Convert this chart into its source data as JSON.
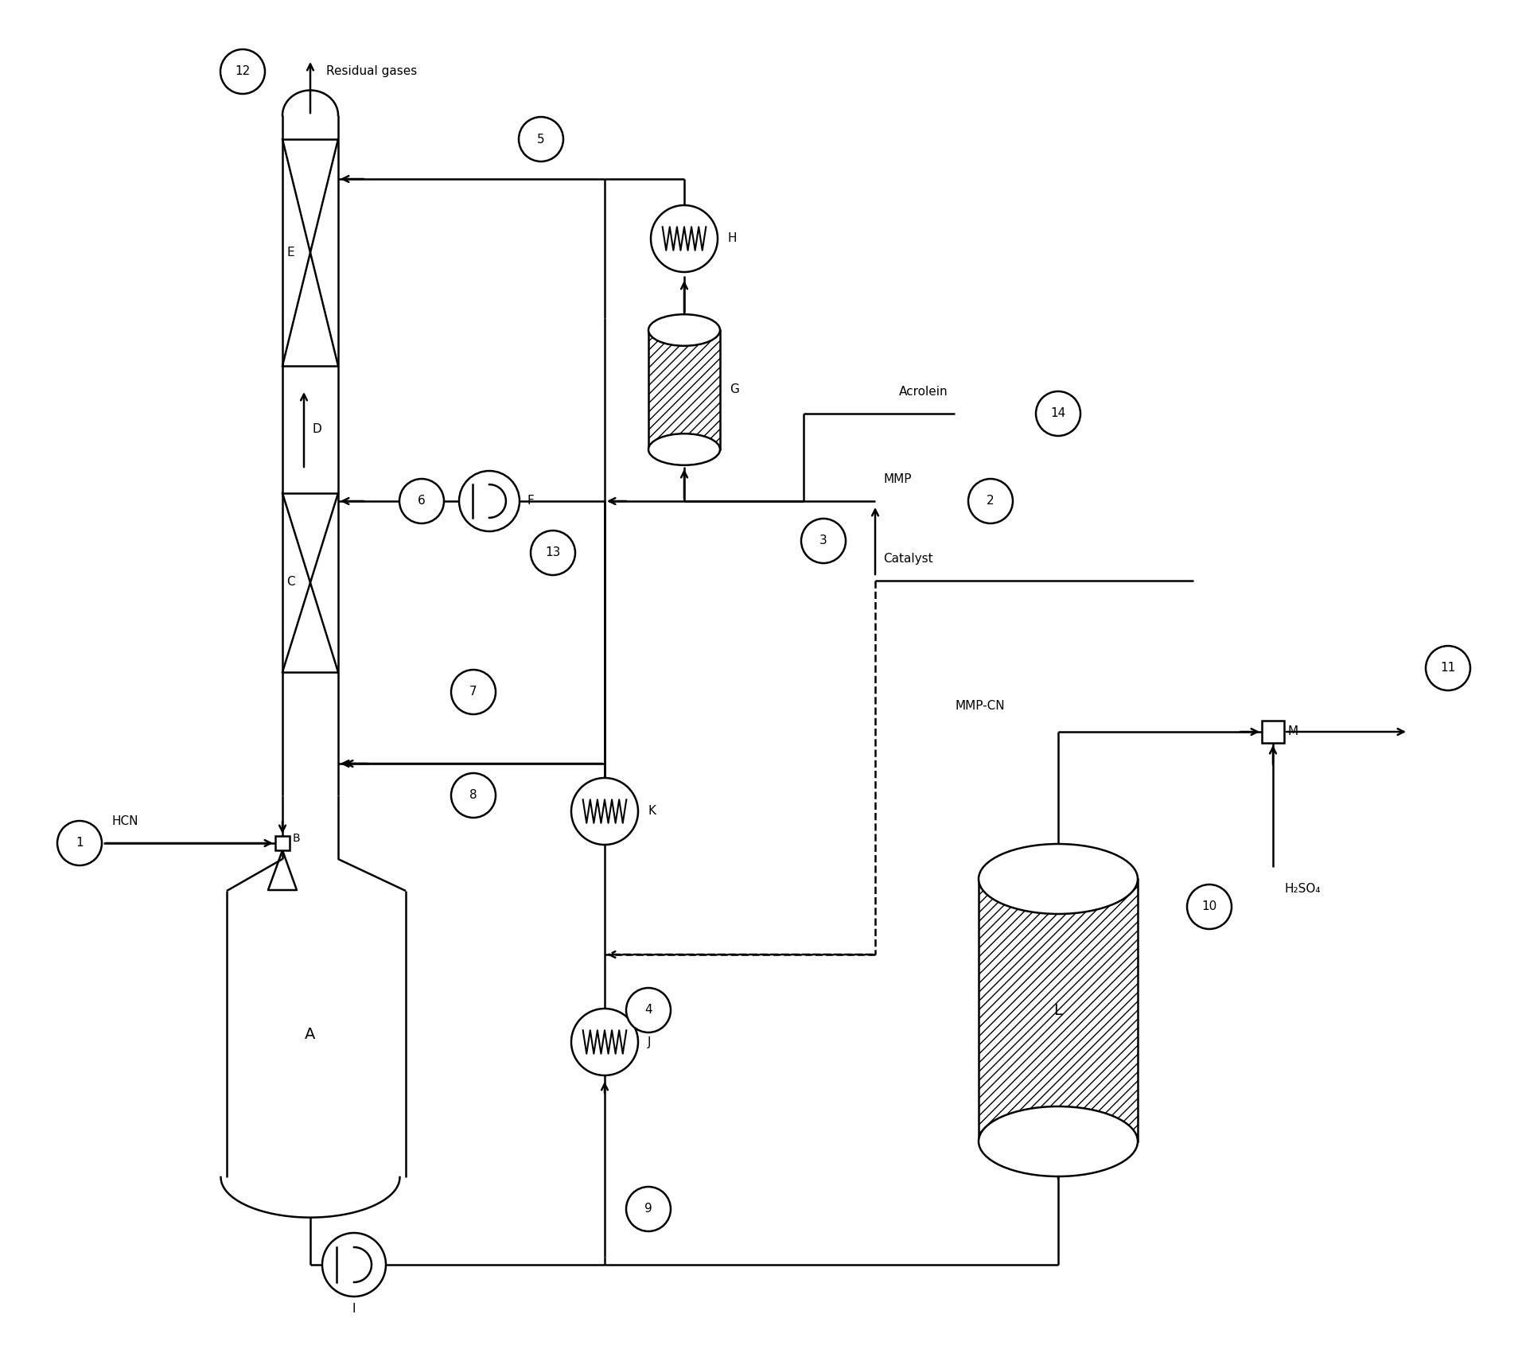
{
  "bg_color": "#ffffff",
  "figsize": [
    19.13,
    17.01
  ],
  "dpi": 100,
  "labels": {
    "residual_gases": "Residual gases",
    "hcn": "HCN",
    "acrolein": "Acrolein",
    "mmp": "MMP",
    "catalyst": "Catalyst",
    "mmp_cn": "MMP-CN",
    "h2so4": "H₂SO₄",
    "A": "A",
    "B": "B",
    "C": "C",
    "D": "D",
    "E": "E",
    "F": "F",
    "G": "G",
    "H": "H",
    "I": "I",
    "J": "J",
    "K": "K",
    "L": "L",
    "M": "M"
  },
  "streams": [
    "1",
    "2",
    "3",
    "4",
    "5",
    "6",
    "7",
    "8",
    "9",
    "10",
    "11",
    "12",
    "13",
    "14"
  ]
}
